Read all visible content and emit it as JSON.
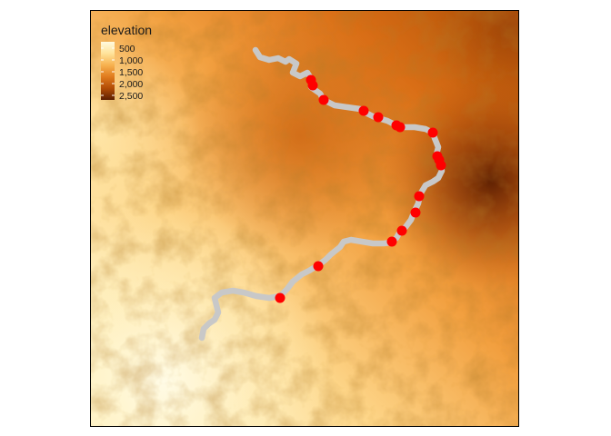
{
  "legend": {
    "title": "elevation",
    "labels": [
      "500",
      "1,000",
      "1,500",
      "2,000",
      "2,500"
    ],
    "colors": [
      "#fffbe0",
      "#ffe39a",
      "#f7b250",
      "#e07b1e",
      "#b24c06",
      "#5c1f02"
    ]
  },
  "colors": {
    "route": "#c8c8c8",
    "points": "#ff0000",
    "frame": "#000000"
  },
  "map_features": {
    "route": "river route polyline",
    "points": "sample points on route",
    "point_count": 19
  }
}
